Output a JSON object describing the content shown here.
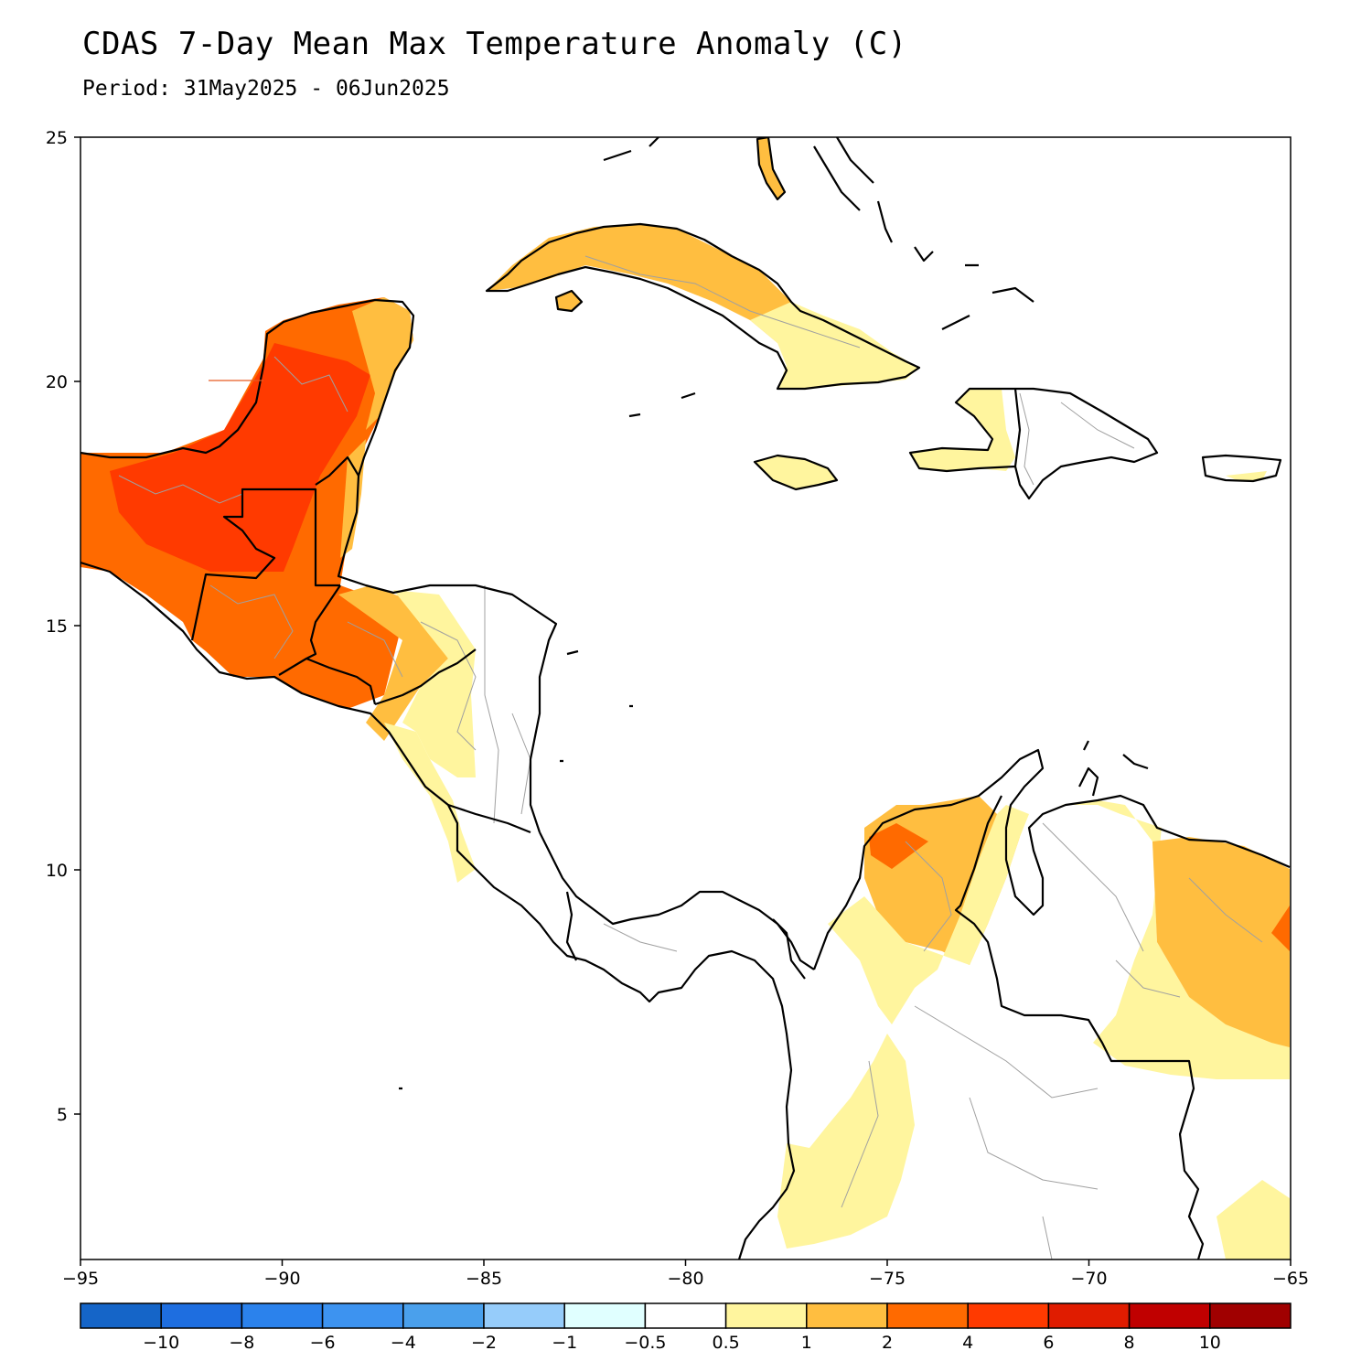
{
  "title": "CDAS 7-Day Mean Max Temperature Anomaly (C)",
  "subtitle": "Period: 31May2025 - 06Jun2025",
  "map": {
    "lon_range": [
      -95,
      -65
    ],
    "lat_range": [
      2.4,
      25
    ],
    "x_ticks": [
      "−95",
      "−90",
      "−85",
      "−80",
      "−75",
      "−70",
      "−65"
    ],
    "y_ticks": [
      "25",
      "20",
      "15",
      "10",
      "5"
    ],
    "land_outline_color": "#000000",
    "border_color": "#a0a0a0",
    "regions": [
      {
        "name": "Yucatan Peninsula / southern Mexico",
        "anomaly_class": "4 to 6"
      },
      {
        "name": "Guatemala / Belize / El Salvador",
        "anomaly_class": "4 to 6"
      },
      {
        "name": "Honduras (west)",
        "anomaly_class": "2 to 4"
      },
      {
        "name": "Cuba (west/central)",
        "anomaly_class": "1 to 2"
      },
      {
        "name": "Cuba (east)",
        "anomaly_class": "0.5 to 1"
      },
      {
        "name": "Jamaica",
        "anomaly_class": "0.5 to 1"
      },
      {
        "name": "Haiti",
        "anomaly_class": "0.5 to 1"
      },
      {
        "name": "Northern Colombia",
        "anomaly_class": "1 to 2"
      },
      {
        "name": "Western Venezuela",
        "anomaly_class": "0.5 to 1"
      },
      {
        "name": "Eastern Venezuela",
        "anomaly_class": "1 to 2"
      }
    ]
  },
  "colorbar": {
    "colors": [
      "#1565c8",
      "#1e6ee0",
      "#2b82ec",
      "#3d93f0",
      "#4aa0ec",
      "#96ccfa",
      "#e0ffff",
      "#ffffff",
      "#fff59e",
      "#ffbe40",
      "#ff6a00",
      "#ff3a00",
      "#e01c00",
      "#c00000",
      "#a00000"
    ],
    "labels": [
      "−10",
      "−8",
      "−6",
      "−4",
      "−2",
      "−1",
      "−0.5",
      "0.5",
      "1",
      "2",
      "4",
      "6",
      "8",
      "10"
    ]
  }
}
